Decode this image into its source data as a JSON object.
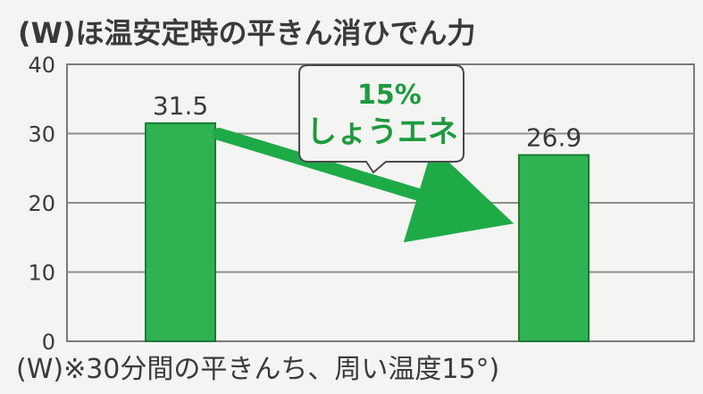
{
  "chart_data": {
    "type": "bar",
    "title": "(W)ほ温安定時の平きん消ひでん力",
    "footnote": "(W)※30分間の平きんち、周い温度15°)",
    "yticks": [
      "0",
      "10",
      "20",
      "30",
      "40"
    ],
    "ylim": [
      0,
      40
    ],
    "categories": [
      "",
      ""
    ],
    "values": [
      31.5,
      26.9
    ],
    "data_labels": [
      "31.5",
      "26.9"
    ],
    "annotation": {
      "line1": "15%",
      "line2": "しょうエネ"
    },
    "grid": true,
    "colors": {
      "bar": "#2fb352",
      "arrow": "#1faa48",
      "annotation_text": "#1e9a40",
      "grid": "#8e8e8e",
      "text": "#3a3a3a"
    }
  }
}
